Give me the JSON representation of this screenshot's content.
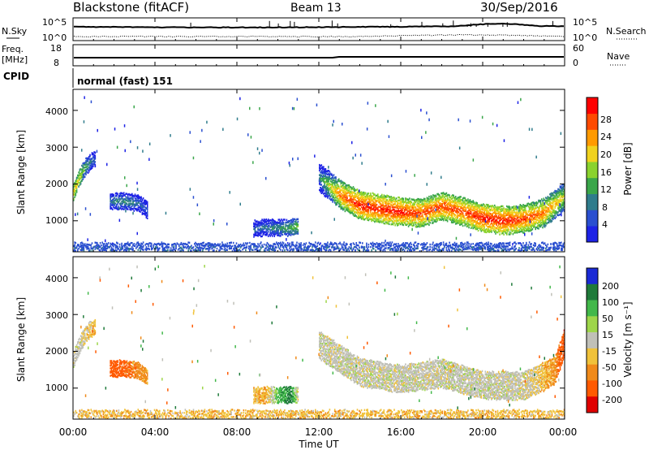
{
  "header": {
    "radar": "Blackstone (fitACF)",
    "beam": "Beam 13",
    "date": "30/Sep/2016"
  },
  "noise_panel": {
    "left_label": "N.Sky",
    "right_label": "N.Search",
    "left_ticks": [
      "10^5",
      "10^0"
    ],
    "right_ticks": [
      "10^5",
      "10^0"
    ]
  },
  "freq_panel": {
    "left_label_1": "Freq.",
    "left_label_2": "[MHz]",
    "right_label": "Nave",
    "left_ticks": [
      "18",
      "8"
    ],
    "right_ticks": [
      "60",
      "0"
    ]
  },
  "cpid": {
    "label": "CPID",
    "value": "normal (fast) 151"
  },
  "xaxis": {
    "title": "Time UT",
    "ticks": [
      "00:00",
      "04:00",
      "08:00",
      "12:00",
      "16:00",
      "20:00",
      "00:00"
    ]
  },
  "power_panel": {
    "ylabel": "Slant Range [km]",
    "yticks": [
      "1000",
      "2000",
      "3000",
      "4000"
    ],
    "colorbar_label": "Power [dB]",
    "colorbar_ticks": [
      "4",
      "8",
      "12",
      "16",
      "20",
      "24",
      "28"
    ]
  },
  "velocity_panel": {
    "ylabel": "Slant Range [km]",
    "yticks": [
      "1000",
      "2000",
      "3000",
      "4000"
    ],
    "colorbar_label": "Velocity [m s⁻¹]",
    "colorbar_ticks": [
      "200",
      "100",
      "50",
      "15",
      "-15",
      "-50",
      "-100",
      "-200"
    ]
  },
  "colors": {
    "power_scale": [
      "#1d22e6",
      "#2a4fd0",
      "#2f7c8c",
      "#3aa64a",
      "#8ad22e",
      "#f0d21e",
      "#ff9a00",
      "#ff4a00",
      "#ff0000"
    ],
    "velocity_scale": [
      "#1a2ad6",
      "#1f7a3a",
      "#42b84a",
      "#9ed64a",
      "#c0c0b8",
      "#f0c23a",
      "#f08a1a",
      "#ff5a00",
      "#e00000"
    ],
    "trace": "#000000"
  },
  "chart_data": [
    {
      "type": "heatmap",
      "title": "Power [dB]",
      "xlabel": "Time UT",
      "ylabel": "Slant Range [km]",
      "xlim": [
        0,
        24
      ],
      "ylim": [
        180,
        4550
      ],
      "zlim": [
        0,
        30
      ],
      "series": [
        {
          "x": [
            0.0,
            0.3,
            0.6,
            0.9,
            1.1
          ],
          "y": [
            1800,
            2200,
            2500,
            2650,
            2700
          ],
          "z": [
            20,
            18,
            12,
            8,
            6
          ]
        },
        {
          "x": [
            1.8,
            2.3,
            2.8,
            3.2,
            3.6
          ],
          "y": [
            1550,
            1560,
            1540,
            1500,
            1320
          ],
          "z": [
            8,
            10,
            10,
            8,
            6
          ]
        },
        {
          "x": [
            8.8,
            9.4,
            10.0,
            10.6,
            11.0
          ],
          "y": [
            820,
            840,
            830,
            840,
            870
          ],
          "z": [
            6,
            8,
            10,
            12,
            14
          ]
        },
        {
          "x": [
            12.0,
            13.0,
            14.0,
            15.0,
            16.0,
            17.0,
            18.0,
            19.0,
            20.0,
            21.0,
            22.0,
            23.0,
            24.0
          ],
          "y": [
            2200,
            1750,
            1450,
            1350,
            1270,
            1230,
            1420,
            1280,
            1100,
            1030,
            1080,
            1250,
            1700
          ],
          "z": [
            10,
            24,
            28,
            28,
            28,
            26,
            26,
            26,
            28,
            28,
            26,
            24,
            18
          ]
        },
        {
          "x": [
            0,
            24
          ],
          "y": [
            250,
            250
          ],
          "z": [
            6,
            6
          ]
        }
      ]
    },
    {
      "type": "heatmap",
      "title": "Velocity [m s⁻¹]",
      "xlabel": "Time UT",
      "ylabel": "Slant Range [km]",
      "xlim": [
        0,
        24
      ],
      "ylim": [
        180,
        4550
      ],
      "zlim": [
        -200,
        200
      ],
      "series": [
        {
          "x": [
            0.0,
            0.3,
            0.6,
            0.9,
            1.1
          ],
          "y": [
            1800,
            2200,
            2500,
            2650,
            2700
          ],
          "z": [
            0,
            0,
            -20,
            -30,
            -30
          ]
        },
        {
          "x": [
            1.8,
            2.3,
            2.8,
            3.2,
            3.6
          ],
          "y": [
            1550,
            1560,
            1540,
            1500,
            1320
          ],
          "z": [
            -100,
            -100,
            -80,
            -60,
            -50
          ]
        },
        {
          "x": [
            8.8,
            9.4,
            10.0,
            10.6,
            11.0
          ],
          "y": [
            820,
            840,
            830,
            840,
            870
          ],
          "z": [
            -30,
            -40,
            50,
            100,
            -30
          ]
        },
        {
          "x": [
            12.0,
            14.0,
            16.0,
            18.0,
            20.0,
            22.0,
            23.5,
            24.0
          ],
          "y": [
            2200,
            1450,
            1270,
            1420,
            1100,
            1080,
            1500,
            2300
          ],
          "z": [
            0,
            0,
            0,
            0,
            0,
            0,
            -50,
            -150
          ]
        },
        {
          "x": [
            0,
            24
          ],
          "y": [
            250,
            250
          ],
          "z": [
            -30,
            -30
          ]
        }
      ]
    }
  ]
}
